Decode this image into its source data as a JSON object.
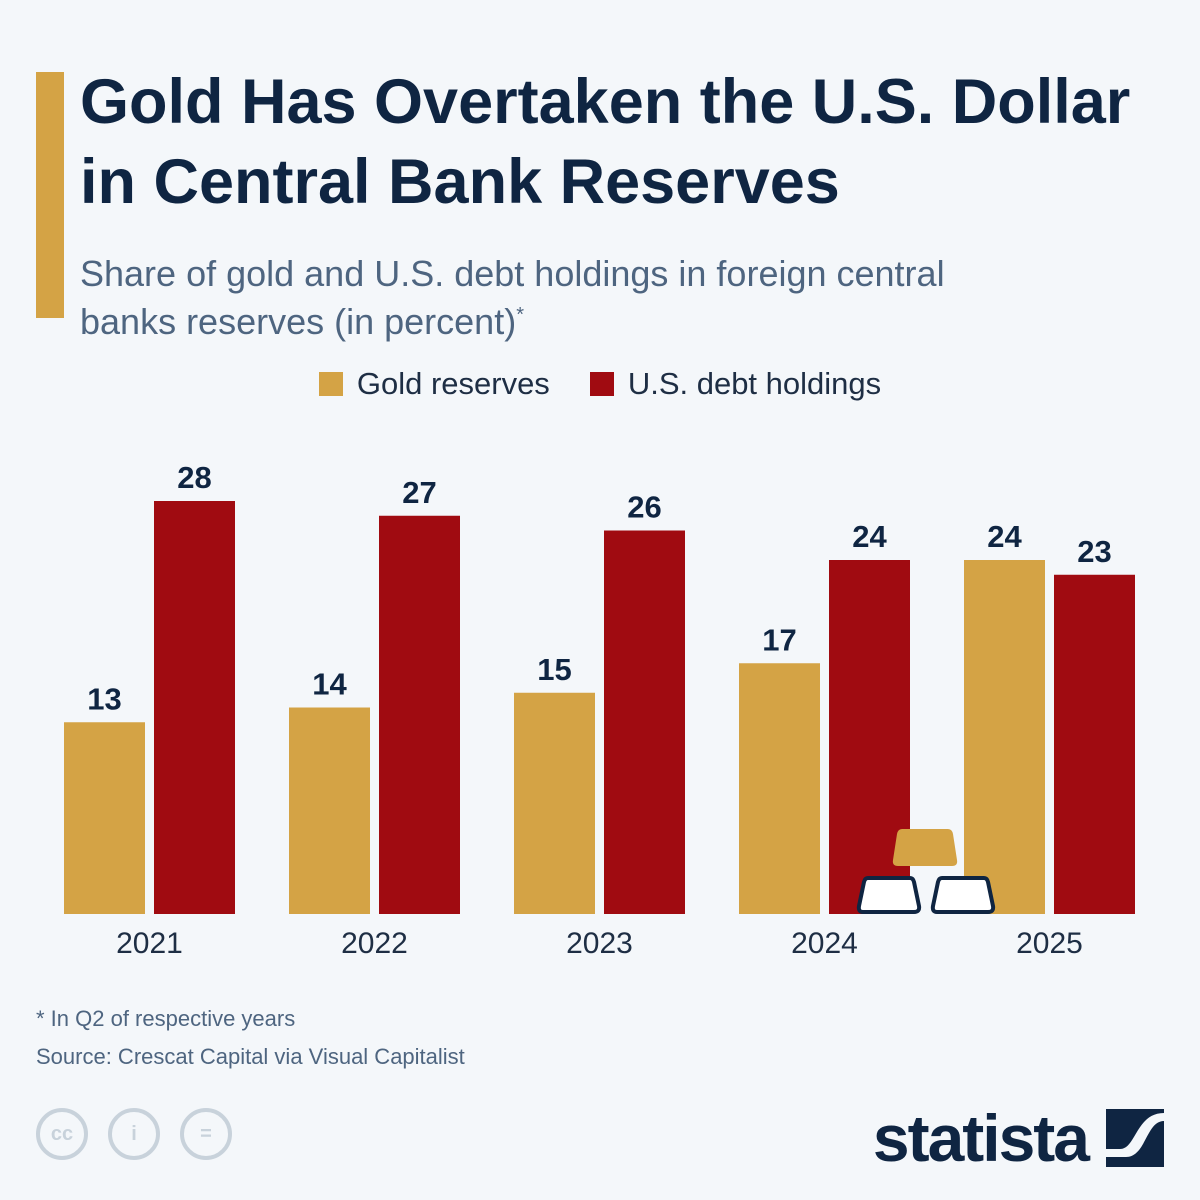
{
  "header": {
    "title": "Gold Has Overtaken the U.S. Dollar in Central Bank Reserves",
    "subtitle": "Share of gold and U.S. debt holdings in foreign central banks reserves (in percent)",
    "subtitle_marker": "*"
  },
  "chart_data": {
    "type": "bar",
    "title": "Gold Has Overtaken the U.S. Dollar in Central Bank Reserves",
    "subtitle": "Share of gold and U.S. debt holdings in foreign central banks reserves (in percent)",
    "categories": [
      "2021",
      "2022",
      "2023",
      "2024",
      "2025"
    ],
    "series": [
      {
        "name": "Gold reserves",
        "color": "#d4a345",
        "values": [
          13,
          14,
          15,
          17,
          24
        ]
      },
      {
        "name": "U.S. debt holdings",
        "color": "#a00b11",
        "values": [
          28,
          27,
          26,
          24,
          23
        ]
      }
    ],
    "xlabel": "",
    "ylabel": "",
    "ylim": [
      0,
      28
    ],
    "grid": false,
    "legend": "top-center",
    "data_labels": true
  },
  "footer": {
    "note": "* In Q2 of respective years",
    "source": "Source: Crescat Capital via Visual Capitalist",
    "license_icons": [
      "cc-icon",
      "attribution-icon",
      "no-derivatives-icon"
    ],
    "logo": "statista"
  },
  "colors": {
    "title": "#0f2542",
    "accent": "#d4a345",
    "background": "#f4f7fa"
  }
}
